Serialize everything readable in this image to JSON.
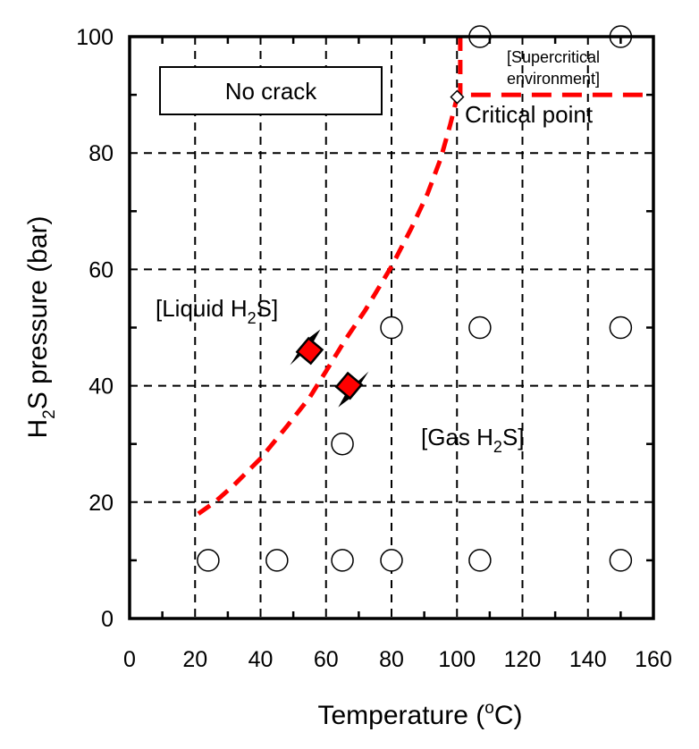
{
  "chart_data": {
    "type": "scatter",
    "xlabel": "Temperature (",
    "xlabel_sup": "o",
    "xlabel_end": "C)",
    "ylabel_pre": "H",
    "ylabel_sub": "2",
    "ylabel_post": "S pressure (bar)",
    "xlim": [
      0,
      160
    ],
    "ylim": [
      0,
      100
    ],
    "xticks": [
      0,
      20,
      40,
      60,
      80,
      100,
      120,
      140,
      160
    ],
    "yticks": [
      0,
      20,
      40,
      60,
      80,
      100
    ],
    "grid": true,
    "legend_box": "No crack",
    "no_crack_points": [
      [
        24,
        10
      ],
      [
        45,
        10
      ],
      [
        65,
        10
      ],
      [
        80,
        10
      ],
      [
        107,
        10
      ],
      [
        150,
        10
      ],
      [
        65,
        30
      ],
      [
        80,
        50
      ],
      [
        107,
        50
      ],
      [
        150,
        50
      ],
      [
        107,
        100
      ],
      [
        150,
        100
      ]
    ],
    "red_points": [
      [
        55,
        46
      ],
      [
        67,
        40
      ]
    ],
    "phase_boundary": {
      "color": "#ff0000",
      "points": [
        [
          21,
          18
        ],
        [
          26,
          20
        ],
        [
          32,
          23
        ],
        [
          40,
          27.5
        ],
        [
          48,
          33
        ],
        [
          55,
          38
        ],
        [
          60,
          42.5
        ],
        [
          66,
          48
        ],
        [
          72,
          53
        ],
        [
          80,
          60.5
        ],
        [
          86,
          67
        ],
        [
          91,
          73
        ],
        [
          95,
          79
        ],
        [
          98,
          85
        ],
        [
          100.05,
          89.63
        ]
      ],
      "supercritical_vertical_x": 101,
      "supercritical_horizontal_y": 90
    },
    "critical_point": {
      "x": 100.05,
      "y": 89.63,
      "label": "Critical point"
    },
    "annotations": {
      "liquid_pre": "[Liquid H",
      "liquid_sub": "2",
      "liquid_post": "S]",
      "gas_pre": "[Gas H",
      "gas_sub": "2",
      "gas_post": "S]",
      "super_1": "[Supercritical",
      "super_2": "environment]"
    }
  }
}
